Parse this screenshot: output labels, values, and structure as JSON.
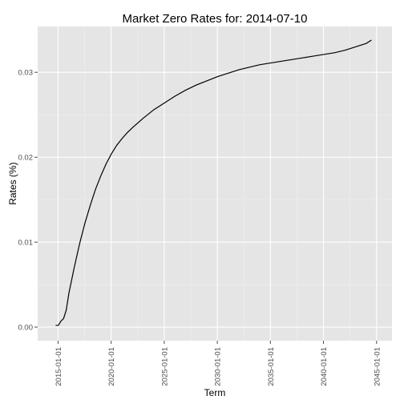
{
  "chart_data": {
    "type": "line",
    "title": "Market Zero Rates for: 2014-07-10",
    "xlabel": "Term",
    "ylabel": "Rates (%)",
    "x_ticks": [
      "2015-01-01",
      "2020-01-01",
      "2025-01-01",
      "2030-01-01",
      "2035-01-01",
      "2040-01-01",
      "2045-01-01"
    ],
    "y_ticks": [
      "0.00",
      "0.01",
      "0.02",
      "0.03"
    ],
    "xlim": [
      "2013-01-30",
      "2046-06-15"
    ],
    "ylim": [
      -0.0016,
      0.0354
    ],
    "grid": true,
    "background": "#e5e5e5",
    "line_color": "#000000",
    "series": [
      {
        "x": [
          "2014-10-10",
          "2015-01-10",
          "2015-04-10",
          "2015-07-10",
          "2015-10-10",
          "2016-01-10",
          "2016-07-10",
          "2017-01-10",
          "2017-07-10",
          "2018-01-10",
          "2018-07-10",
          "2019-01-10",
          "2019-07-10",
          "2020-01-10",
          "2020-07-10",
          "2021-01-10",
          "2021-07-10",
          "2022-01-10",
          "2023-01-10",
          "2024-01-10",
          "2025-01-10",
          "2026-01-10",
          "2027-01-10",
          "2028-01-10",
          "2029-01-10",
          "2030-01-10",
          "2031-01-10",
          "2032-01-10",
          "2033-01-10",
          "2034-01-10",
          "2035-01-10",
          "2036-01-10",
          "2037-01-10",
          "2038-01-10",
          "2039-01-10",
          "2040-01-10",
          "2041-01-10",
          "2042-01-10",
          "2043-01-10",
          "2044-01-10",
          "2044-07-10"
        ],
        "y": [
          0.0002,
          0.0002,
          0.0007,
          0.001,
          0.002,
          0.004,
          0.007,
          0.0098,
          0.0122,
          0.0143,
          0.0162,
          0.0178,
          0.0192,
          0.0204,
          0.0214,
          0.0222,
          0.0229,
          0.0235,
          0.0246,
          0.0256,
          0.0264,
          0.0272,
          0.0279,
          0.0285,
          0.029,
          0.0295,
          0.0299,
          0.0303,
          0.0306,
          0.0309,
          0.0311,
          0.0313,
          0.0315,
          0.0317,
          0.0319,
          0.0321,
          0.0323,
          0.0326,
          0.033,
          0.0334,
          0.0338
        ]
      }
    ]
  }
}
